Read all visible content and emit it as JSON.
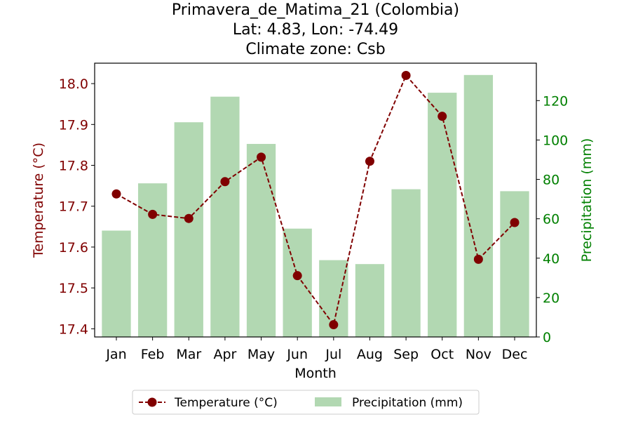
{
  "title_lines": [
    "Primavera_de_Matima_21 (Colombia)",
    "Lat: 4.83, Lon: -74.49",
    "Climate zone: Csb"
  ],
  "colors": {
    "temperature": "#800000",
    "precipitation": "#008000",
    "precip_bar": "#b2d8b2",
    "axis": "#000000"
  },
  "chart_data": {
    "type": "bar",
    "title": "Primavera_de_Matima_21 (Colombia)\nLat: 4.83, Lon: -74.49\nClimate zone: Csb",
    "xlabel": "Month",
    "categories": [
      "Jan",
      "Feb",
      "Mar",
      "Apr",
      "May",
      "Jun",
      "Jul",
      "Aug",
      "Sep",
      "Oct",
      "Nov",
      "Dec"
    ],
    "series": [
      {
        "name": "Temperature (°C)",
        "type": "line",
        "axis": "left",
        "values": [
          17.73,
          17.68,
          17.67,
          17.76,
          17.82,
          17.53,
          17.41,
          17.81,
          18.02,
          17.92,
          17.57,
          17.66
        ]
      },
      {
        "name": "Precipitation (mm)",
        "type": "bar",
        "axis": "right",
        "values": [
          54,
          78,
          109,
          122,
          98,
          55,
          39,
          37,
          75,
          124,
          133,
          74
        ]
      }
    ],
    "y_left": {
      "label": "Temperature (°C)",
      "range": [
        17.38,
        18.05
      ],
      "ticks": [
        "17.4",
        "17.5",
        "17.6",
        "17.7",
        "17.8",
        "17.9",
        "18.0"
      ]
    },
    "y_right": {
      "label": "Precipitation (mm)",
      "range": [
        0,
        139
      ],
      "ticks": [
        "0",
        "20",
        "40",
        "60",
        "80",
        "100",
        "120"
      ]
    },
    "legend": {
      "placement": "bottom-center"
    },
    "grid": false
  }
}
